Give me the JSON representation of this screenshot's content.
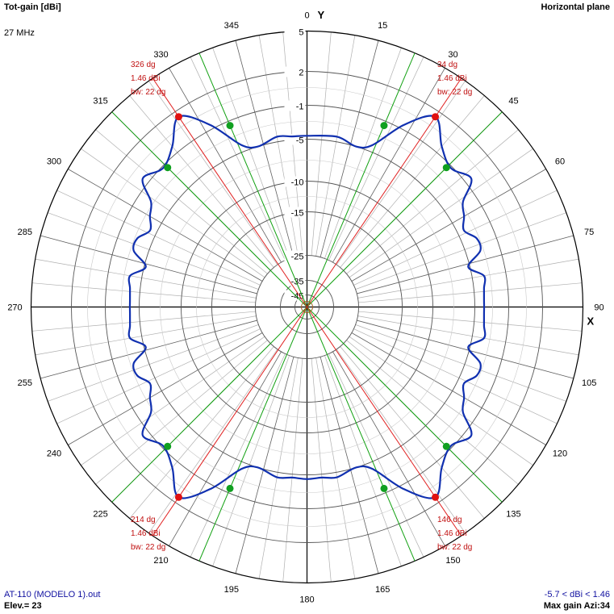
{
  "header": {
    "title": "Tot-gain [dBi]",
    "frequency": "27 MHz",
    "plane": "Horizontal plane"
  },
  "footer": {
    "file": "AT-110 (MODELO 1).out",
    "elevation": "Elev.= 23",
    "range": "-5.7 < dBi < 1.46",
    "max_gain": "Max gain Azi:34"
  },
  "chart_data": {
    "type": "polar",
    "title": "Tot-gain [dBi]",
    "axis_labels": {
      "y": "Y",
      "x": "X"
    },
    "angle_ticks": [
      "0",
      "15",
      "30",
      "45",
      "60",
      "75",
      "90",
      "105",
      "120",
      "135",
      "150",
      "165",
      "180",
      "195",
      "210",
      "225",
      "240",
      "255",
      "270",
      "285",
      "300",
      "315",
      "330",
      "345"
    ],
    "radial_ticks": [
      "5",
      "2",
      "-1",
      "-5",
      "-10",
      "-15",
      "-25",
      "-35",
      "-45"
    ],
    "radial_tick_values": [
      5,
      2,
      -1,
      -5,
      -10,
      -15,
      -25,
      -35,
      -45
    ],
    "gain_range": [
      -45,
      5
    ],
    "series": [
      {
        "color": "#1030b0",
        "azimuth_deg": [
          0,
          10,
          17,
          22,
          28,
          34,
          40,
          46,
          52,
          56,
          60,
          64,
          68,
          72,
          76,
          80,
          84,
          88,
          90,
          92,
          96,
          100,
          104,
          108,
          112,
          116,
          120,
          124,
          128,
          134,
          140,
          146,
          152,
          158,
          163,
          170,
          175,
          180,
          185,
          190,
          197,
          202,
          208,
          214,
          220,
          226,
          232,
          236,
          240,
          244,
          248,
          252,
          256,
          260,
          264,
          268,
          270,
          272,
          276,
          280,
          284,
          288,
          292,
          296,
          300,
          304,
          308,
          314,
          320,
          326,
          332,
          338,
          343,
          350,
          355
        ],
        "gain_dbi": [
          -4.6,
          -4.4,
          -5.0,
          -4.2,
          -0.6,
          1.46,
          -0.3,
          -1.2,
          -0.4,
          -2.6,
          -3.4,
          -4.2,
          -3.2,
          -3.3,
          -5.2,
          -3.6,
          -3.8,
          -3.9,
          -3.9,
          -3.9,
          -3.8,
          -3.6,
          -5.2,
          -3.3,
          -3.2,
          -4.2,
          -3.4,
          -2.6,
          -0.4,
          -1.2,
          -0.3,
          1.46,
          -0.6,
          -4.2,
          -5.0,
          -4.4,
          -4.6,
          -4.5,
          -4.6,
          -4.4,
          -5.0,
          -4.2,
          -0.6,
          1.46,
          -0.3,
          -1.2,
          -0.4,
          -2.6,
          -3.4,
          -4.2,
          -3.2,
          -3.3,
          -5.2,
          -3.6,
          -3.8,
          -3.9,
          -3.9,
          -3.9,
          -3.8,
          -3.6,
          -5.2,
          -3.3,
          -3.2,
          -4.2,
          -3.4,
          -2.6,
          -0.4,
          -1.2,
          -0.3,
          1.46,
          -0.6,
          -4.2,
          -5.0,
          -4.4,
          -4.6
        ]
      }
    ],
    "max_markers": [
      {
        "azimuth": 34,
        "gain_dbi": 1.46,
        "labels": [
          "34 dg",
          "1.46 dBi",
          "bw: 22 dg"
        ]
      },
      {
        "azimuth": 146,
        "gain_dbi": 1.46,
        "labels": [
          "146 dg",
          "1.46 dBi",
          "bw: 22 dg"
        ]
      },
      {
        "azimuth": 214,
        "gain_dbi": 1.46,
        "labels": [
          "214 dg",
          "1.46 dBi",
          "bw: 22 dg"
        ]
      },
      {
        "azimuth": 326,
        "gain_dbi": 1.46,
        "labels": [
          "326 dg",
          "1.46 dBi",
          "bw: 22 dg"
        ]
      }
    ],
    "beamwidth_points": [
      {
        "azimuth": 23,
        "gain_dbi": -1.54
      },
      {
        "azimuth": 45,
        "gain_dbi": -1.54
      },
      {
        "azimuth": 135,
        "gain_dbi": -1.54
      },
      {
        "azimuth": 157,
        "gain_dbi": -1.54
      },
      {
        "azimuth": 203,
        "gain_dbi": -1.54
      },
      {
        "azimuth": 225,
        "gain_dbi": -1.54
      },
      {
        "azimuth": 315,
        "gain_dbi": -1.54
      },
      {
        "azimuth": 337,
        "gain_dbi": -1.54
      }
    ],
    "colors": {
      "pattern": "#1030b0",
      "max_line": "#e02020",
      "bw_line": "#10a010",
      "grid_major": "#000000",
      "grid_minor": "#b0b0b0"
    }
  }
}
